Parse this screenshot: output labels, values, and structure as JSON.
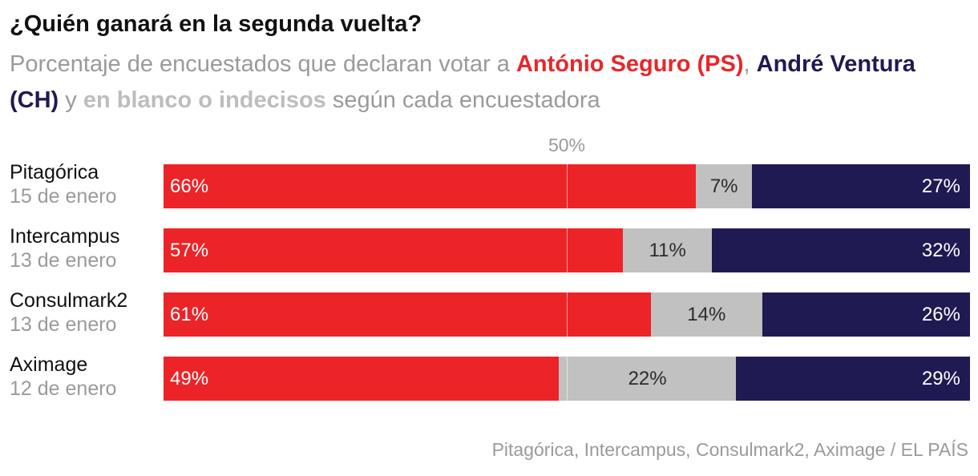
{
  "title": "¿Quién ganará en la segunda vuelta?",
  "subtitle": {
    "prefix": "Porcentaje de encuestados que declaran votar a ",
    "seguro": "António Seguro (PS)",
    "comma": ", ",
    "ventura": "André Ventura (CH)",
    "y": " y ",
    "blanco": "en blanco o indecisos",
    "suffix": " según cada encuestadora"
  },
  "reference_label": "50%",
  "source": "Pitagórica, Intercampus, Consulmark2, Aximage / EL PAÍS",
  "colors": {
    "seguro": "#ec2427",
    "blanco": "#c1c1c1",
    "ventura": "#201a52"
  },
  "chart_data": {
    "type": "bar",
    "orientation": "horizontal",
    "stacked": true,
    "normalized": true,
    "title": "¿Quién ganará en la segunda vuelta?",
    "reference_line": 50,
    "categories": [
      "Pitagórica",
      "Intercampus",
      "Consulmark2",
      "Aximage"
    ],
    "dates": [
      "15 de enero",
      "13 de enero",
      "13 de enero",
      "12 de enero"
    ],
    "series": [
      {
        "name": "António Seguro (PS)",
        "values": [
          66,
          57,
          61,
          49
        ],
        "labels": [
          "66%",
          "57%",
          "61%",
          "49%"
        ]
      },
      {
        "name": "en blanco o indecisos",
        "values": [
          7,
          11,
          14,
          22
        ],
        "labels": [
          "7%",
          "11%",
          "14%",
          "22%"
        ]
      },
      {
        "name": "André Ventura (CH)",
        "values": [
          27,
          32,
          26,
          29
        ],
        "labels": [
          "27%",
          "32%",
          "26%",
          "29%"
        ]
      }
    ]
  }
}
